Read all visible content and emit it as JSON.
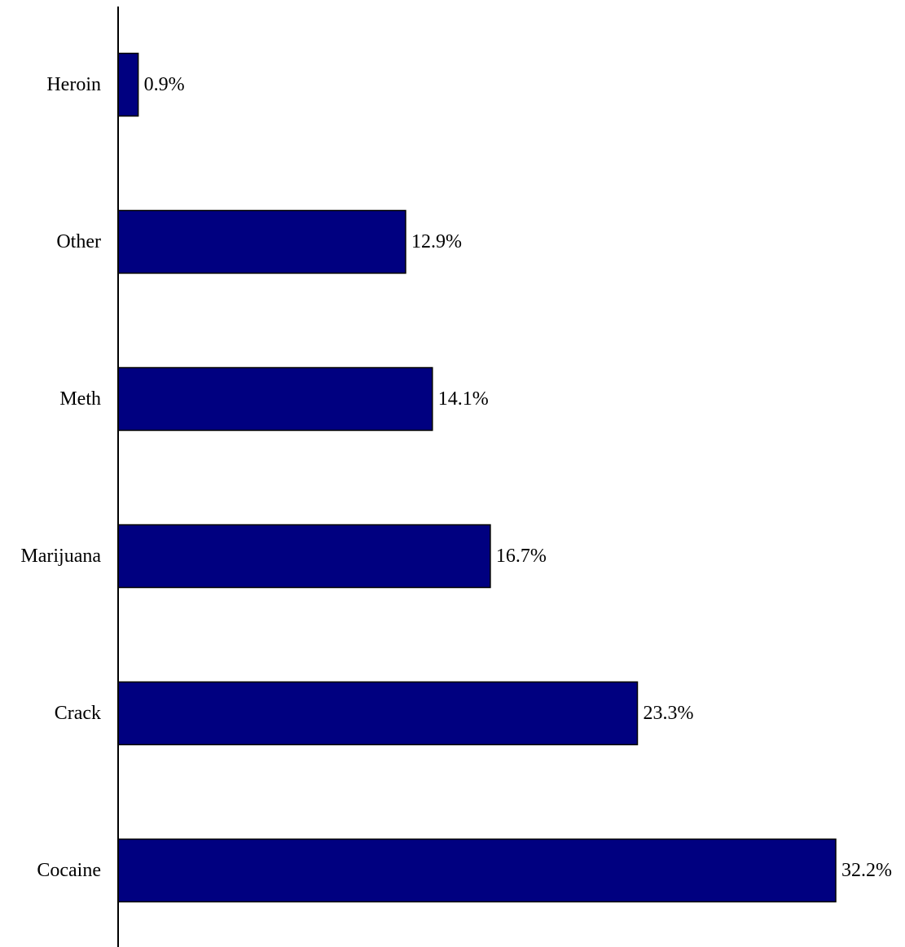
{
  "chart_data": {
    "type": "bar",
    "orientation": "horizontal",
    "title": "",
    "xlabel": "",
    "ylabel": "",
    "categories": [
      "Heroin",
      "Other",
      "Meth",
      "Marijuana",
      "Crack",
      "Cocaine"
    ],
    "values": [
      0.9,
      12.9,
      14.1,
      16.7,
      23.3,
      32.2
    ],
    "value_labels": [
      "0.9%",
      "12.9%",
      "14.1%",
      "16.7%",
      "23.3%",
      "32.2%"
    ],
    "xlim": [
      0,
      32.2
    ],
    "grid": false,
    "legend": "none",
    "bar_color": "#000080",
    "bar_edge_color": "#000000"
  }
}
